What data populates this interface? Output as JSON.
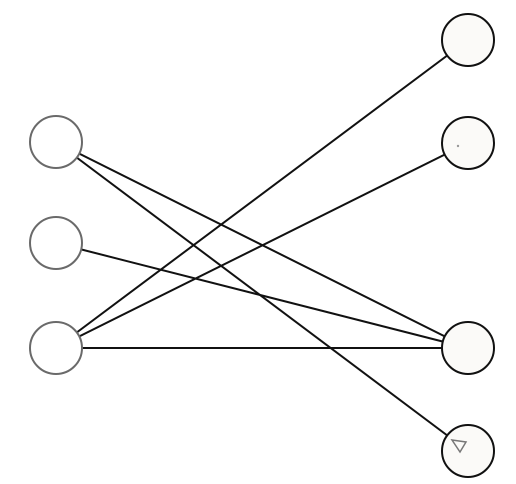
{
  "graph": {
    "type": "bipartite",
    "left_nodes": [
      {
        "id": "L1"
      },
      {
        "id": "L2"
      },
      {
        "id": "L3"
      }
    ],
    "right_nodes": [
      {
        "id": "R1"
      },
      {
        "id": "R2"
      },
      {
        "id": "R3"
      },
      {
        "id": "R4"
      }
    ],
    "edges": [
      [
        "L1",
        "R3"
      ],
      [
        "L1",
        "R4"
      ],
      [
        "L2",
        "R3"
      ],
      [
        "L3",
        "R1"
      ],
      [
        "L3",
        "R2"
      ],
      [
        "L3",
        "R3"
      ]
    ],
    "colors": {
      "edge": "#111111",
      "left_node_stroke": "#6a6a6a",
      "right_node_stroke": "#111111",
      "right_node_fill": "#fbfaf8"
    }
  }
}
